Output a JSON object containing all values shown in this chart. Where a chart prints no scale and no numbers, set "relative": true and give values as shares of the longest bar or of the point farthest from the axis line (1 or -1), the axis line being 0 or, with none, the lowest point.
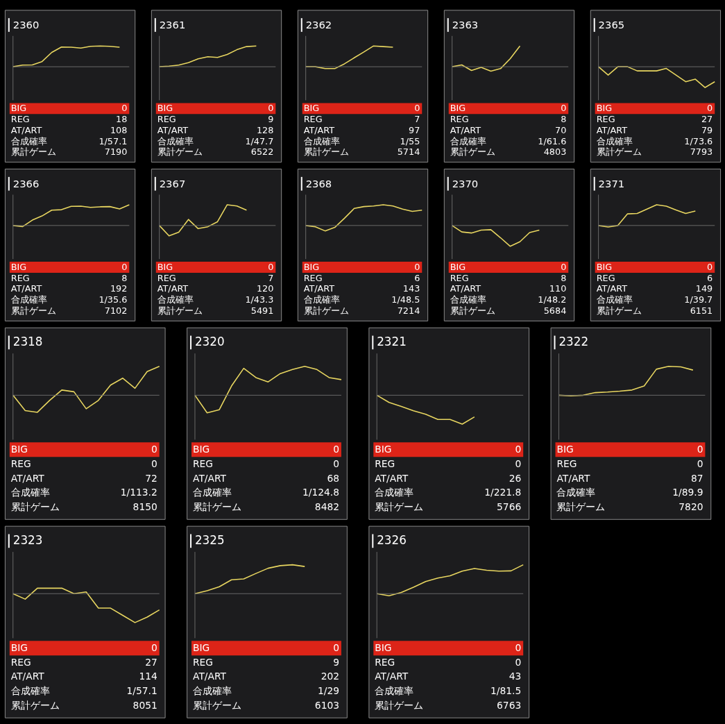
{
  "chart_data": [
    {
      "type": "line",
      "title": "2360",
      "relative": true,
      "categories": [
        null,
        null,
        null,
        null,
        null,
        null,
        null,
        null,
        null,
        null,
        null,
        null,
        null
      ],
      "series": [
        {
          "color": "#e8d660",
          "values": [
            0,
            0.08,
            0.09,
            0.25,
            0.69,
            0.95,
            0.94,
            0.9,
            0.98,
            1,
            0.98,
            0.94,
            null
          ]
        }
      ],
      "annotations": [
        "BIG",
        "0",
        "REG",
        "18",
        "AT/ART",
        "108",
        "合成確率",
        "1/57.1",
        "累計ゲーム",
        "7190"
      ]
    },
    {
      "type": "line",
      "title": "2361",
      "relative": true,
      "categories": [
        null,
        null,
        null,
        null,
        null,
        null,
        null,
        null,
        null,
        null,
        null,
        null,
        null
      ],
      "series": [
        {
          "color": "#e8d660",
          "values": [
            0,
            0.03,
            0.08,
            0.2,
            0.38,
            0.48,
            0.45,
            0.59,
            0.82,
            0.97,
            1,
            null,
            null
          ]
        }
      ],
      "annotations": [
        "BIG",
        "0",
        "REG",
        "9",
        "AT/ART",
        "128",
        "合成確率",
        "1/47.7",
        "累計ゲーム",
        "6522"
      ]
    },
    {
      "type": "line",
      "title": "2362",
      "relative": true,
      "categories": [
        null,
        null,
        null,
        null,
        null,
        null,
        null,
        null,
        null,
        null,
        null,
        null,
        null
      ],
      "series": [
        {
          "color": "#e8d660",
          "values": [
            0,
            0,
            -0.09,
            -0.09,
            0.14,
            0.43,
            0.71,
            1,
            0.97,
            0.94,
            null,
            null,
            null
          ]
        }
      ],
      "annotations": [
        "BIG",
        "0",
        "REG",
        "7",
        "AT/ART",
        "97",
        "合成確率",
        "1/55",
        "累計ゲーム",
        "5714"
      ]
    },
    {
      "type": "line",
      "title": "2363",
      "relative": true,
      "categories": [
        null,
        null,
        null,
        null,
        null,
        null,
        null,
        null,
        null,
        null,
        null,
        null,
        null
      ],
      "series": [
        {
          "color": "#e8d660",
          "values": [
            0,
            0.09,
            -0.18,
            -0.03,
            -0.21,
            -0.09,
            0.39,
            1,
            null,
            null,
            null,
            null,
            null
          ]
        }
      ],
      "annotations": [
        "BIG",
        "0",
        "REG",
        "8",
        "AT/ART",
        "70",
        "合成確率",
        "1/61.6",
        "累計ゲーム",
        "4803"
      ]
    },
    {
      "type": "line",
      "title": "2365",
      "relative": true,
      "categories": [
        null,
        null,
        null,
        null,
        null,
        null,
        null,
        null,
        null,
        null,
        null,
        null,
        null
      ],
      "series": [
        {
          "color": "#e8d660",
          "values": [
            0,
            -0.4,
            0,
            0,
            -0.2,
            -0.2,
            -0.2,
            -0.08,
            -0.4,
            -0.72,
            -0.6,
            -1,
            -0.72
          ]
        }
      ],
      "annotations": [
        "BIG",
        "0",
        "REG",
        "27",
        "AT/ART",
        "79",
        "合成確率",
        "1/73.6",
        "累計ゲーム",
        "7793"
      ]
    },
    {
      "type": "line",
      "title": "2366",
      "relative": true,
      "categories": [
        null,
        null,
        null,
        null,
        null,
        null,
        null,
        null,
        null,
        null,
        null,
        null,
        null
      ],
      "series": [
        {
          "color": "#e8d660",
          "values": [
            0,
            -0.05,
            0.26,
            0.46,
            0.74,
            0.76,
            0.92,
            0.93,
            0.87,
            0.9,
            0.91,
            0.8,
            1
          ]
        }
      ],
      "annotations": [
        "BIG",
        "0",
        "REG",
        "8",
        "AT/ART",
        "192",
        "合成確率",
        "1/35.6",
        "累計ゲーム",
        "7102"
      ]
    },
    {
      "type": "line",
      "title": "2367",
      "relative": true,
      "categories": [
        null,
        null,
        null,
        null,
        null,
        null,
        null,
        null,
        null,
        null,
        null,
        null,
        null
      ],
      "series": [
        {
          "color": "#e8d660",
          "values": [
            0,
            -0.5,
            -0.32,
            0.29,
            -0.15,
            -0.06,
            0.18,
            1,
            0.94,
            0.74,
            null,
            null,
            null
          ]
        }
      ],
      "annotations": [
        "BIG",
        "0",
        "REG",
        "7",
        "AT/ART",
        "120",
        "合成確率",
        "1/43.3",
        "累計ゲーム",
        "5491"
      ]
    },
    {
      "type": "line",
      "title": "2368",
      "relative": true,
      "categories": [
        null,
        null,
        null,
        null,
        null,
        null,
        null,
        null,
        null,
        null,
        null,
        null,
        null
      ],
      "series": [
        {
          "color": "#e8d660",
          "values": [
            0,
            -0.06,
            -0.26,
            -0.09,
            0.35,
            0.82,
            0.91,
            0.94,
            1,
            0.94,
            0.79,
            0.68,
            0.74
          ]
        }
      ],
      "annotations": [
        "BIG",
        "0",
        "REG",
        "6",
        "AT/ART",
        "143",
        "合成確率",
        "1/48.5",
        "累計ゲーム",
        "7214"
      ]
    },
    {
      "type": "line",
      "title": "2370",
      "relative": true,
      "categories": [
        null,
        null,
        null,
        null,
        null,
        null,
        null,
        null,
        null,
        null,
        null,
        null,
        null
      ],
      "series": [
        {
          "color": "#e8d660",
          "values": [
            0,
            -0.31,
            -0.36,
            -0.22,
            -0.2,
            -0.59,
            -1,
            -0.78,
            -0.34,
            -0.22,
            null,
            null,
            null
          ]
        }
      ],
      "annotations": [
        "BIG",
        "0",
        "REG",
        "8",
        "AT/ART",
        "110",
        "合成確率",
        "1/48.2",
        "累計ゲーム",
        "5684"
      ]
    },
    {
      "type": "line",
      "title": "2371",
      "relative": true,
      "categories": [
        null,
        null,
        null,
        null,
        null,
        null,
        null,
        null,
        null,
        null,
        null,
        null,
        null
      ],
      "series": [
        {
          "color": "#e8d660",
          "values": [
            0,
            -0.07,
            0,
            0.56,
            0.58,
            0.79,
            1,
            0.93,
            0.75,
            0.58,
            0.7,
            null,
            null
          ]
        }
      ],
      "annotations": [
        "BIG",
        "0",
        "REG",
        "6",
        "AT/ART",
        "149",
        "合成確率",
        "1/39.7",
        "累計ゲーム",
        "6151"
      ]
    },
    {
      "type": "line",
      "title": "2318",
      "relative": true,
      "categories": [
        null,
        null,
        null,
        null,
        null,
        null,
        null,
        null,
        null,
        null,
        null,
        null,
        null
      ],
      "series": [
        {
          "color": "#e8d660",
          "values": [
            0,
            -0.53,
            -0.59,
            -0.18,
            0.18,
            0.12,
            -0.47,
            -0.18,
            0.35,
            0.59,
            0.24,
            0.82,
            1
          ]
        }
      ],
      "annotations": [
        "BIG",
        "0",
        "REG",
        "0",
        "AT/ART",
        "72",
        "合成確率",
        "1/113.2",
        "累計ゲーム",
        "8150"
      ]
    },
    {
      "type": "line",
      "title": "2320",
      "relative": true,
      "categories": [
        null,
        null,
        null,
        null,
        null,
        null,
        null,
        null,
        null,
        null,
        null,
        null,
        null
      ],
      "series": [
        {
          "color": "#e8d660",
          "values": [
            0,
            -0.61,
            -0.5,
            0.32,
            0.93,
            0.61,
            0.46,
            0.75,
            0.89,
            1,
            0.89,
            0.61,
            0.54
          ]
        }
      ],
      "annotations": [
        "BIG",
        "0",
        "REG",
        "0",
        "AT/ART",
        "68",
        "合成確率",
        "1/124.8",
        "累計ゲーム",
        "8482"
      ]
    },
    {
      "type": "line",
      "title": "2321",
      "relative": true,
      "categories": [
        null,
        null,
        null,
        null,
        null,
        null,
        null,
        null,
        null,
        null,
        null,
        null,
        null
      ],
      "series": [
        {
          "color": "#e8d660",
          "values": [
            0,
            -0.25,
            -0.39,
            -0.54,
            -0.66,
            -0.84,
            -0.84,
            -1,
            -0.75,
            null,
            null,
            null,
            null
          ]
        }
      ],
      "annotations": [
        "BIG",
        "0",
        "REG",
        "0",
        "AT/ART",
        "26",
        "合成確率",
        "1/221.8",
        "累計ゲーム",
        "5766"
      ]
    },
    {
      "type": "line",
      "title": "2322",
      "relative": true,
      "categories": [
        null,
        null,
        null,
        null,
        null,
        null,
        null,
        null,
        null,
        null,
        null,
        null,
        null
      ],
      "series": [
        {
          "color": "#e8d660",
          "values": [
            0,
            -0.02,
            0,
            0.09,
            0.11,
            0.14,
            0.18,
            0.32,
            0.9,
            1,
            0.98,
            0.87,
            null
          ]
        }
      ],
      "annotations": [
        "BIG",
        "0",
        "REG",
        "0",
        "AT/ART",
        "87",
        "合成確率",
        "1/89.9",
        "累計ゲーム",
        "7820"
      ]
    },
    {
      "type": "line",
      "title": "2323",
      "relative": true,
      "categories": [
        null,
        null,
        null,
        null,
        null,
        null,
        null,
        null,
        null,
        null,
        null,
        null,
        null
      ],
      "series": [
        {
          "color": "#e8d660",
          "values": [
            0,
            -0.19,
            0.19,
            0.19,
            0.19,
            0,
            0.06,
            -0.5,
            -0.5,
            -0.75,
            -1,
            -0.81,
            -0.56
          ]
        }
      ],
      "annotations": [
        "BIG",
        "0",
        "REG",
        "27",
        "AT/ART",
        "114",
        "合成確率",
        "1/57.1",
        "累計ゲーム",
        "8051"
      ]
    },
    {
      "type": "line",
      "title": "2325",
      "relative": true,
      "categories": [
        null,
        null,
        null,
        null,
        null,
        null,
        null,
        null,
        null,
        null,
        null,
        null,
        null
      ],
      "series": [
        {
          "color": "#e8d660",
          "values": [
            0,
            0.1,
            0.24,
            0.48,
            0.51,
            0.7,
            0.88,
            0.97,
            1,
            0.94,
            null,
            null,
            null
          ]
        }
      ],
      "annotations": [
        "BIG",
        "0",
        "REG",
        "9",
        "AT/ART",
        "202",
        "合成確率",
        "1/29",
        "累計ゲーム",
        "6103"
      ]
    },
    {
      "type": "line",
      "title": "2326",
      "relative": true,
      "categories": [
        null,
        null,
        null,
        null,
        null,
        null,
        null,
        null,
        null,
        null,
        null,
        null,
        null
      ],
      "series": [
        {
          "color": "#e8d660",
          "values": [
            0,
            -0.07,
            0.04,
            0.22,
            0.42,
            0.54,
            0.62,
            0.78,
            0.87,
            0.81,
            0.78,
            0.79,
            1
          ]
        }
      ],
      "annotations": [
        "BIG",
        "0",
        "REG",
        "0",
        "AT/ART",
        "43",
        "合成確率",
        "1/81.5",
        "累計ゲーム",
        "6763"
      ]
    }
  ]
}
